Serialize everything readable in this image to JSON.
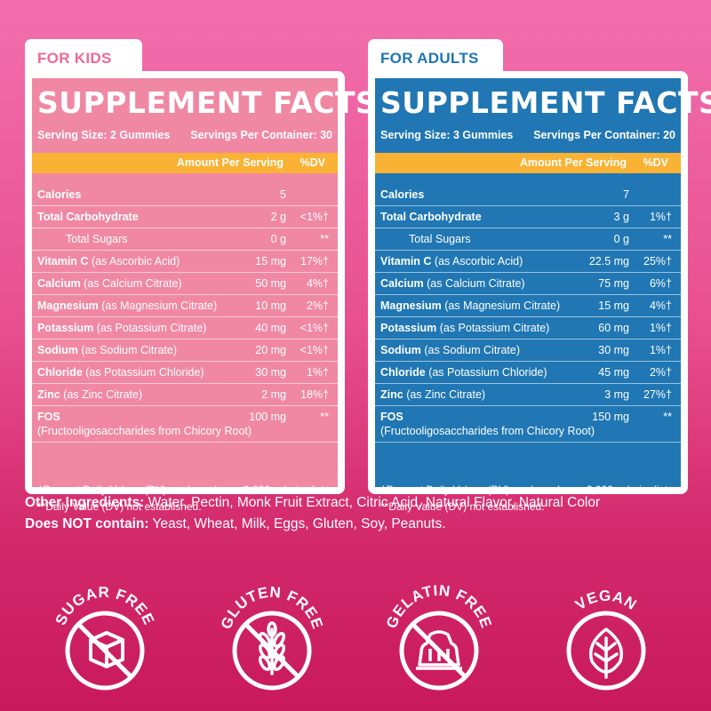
{
  "kids": {
    "tab": "FOR KIDS",
    "title": "SUPPLEMENT FACTS",
    "serving_size": "Serving Size: 2 Gummies",
    "servings_per_container": "Servings Per Container: 30",
    "amount_header": "Amount Per Serving",
    "dv_header": "%DV",
    "rows": [
      {
        "name": "Calories",
        "sub": "",
        "amount": "5",
        "dv": ""
      },
      {
        "name": "Total Carbohydrate",
        "sub": "",
        "amount": "2 g",
        "dv": "<1%†"
      },
      {
        "name": "Total Sugars",
        "sub": "",
        "amount": "0 g",
        "dv": "**"
      },
      {
        "name": "Vitamin C",
        "sub": "(as Ascorbic Acid)",
        "amount": "15 mg",
        "dv": "17%†"
      },
      {
        "name": "Calcium",
        "sub": "(as Calcium Citrate)",
        "amount": "50 mg",
        "dv": "4%†"
      },
      {
        "name": "Magnesium",
        "sub": "(as Magnesium Citrate)",
        "amount": "10 mg",
        "dv": "2%†"
      },
      {
        "name": "Potassium",
        "sub": "(as Potassium Citrate)",
        "amount": "40 mg",
        "dv": "<1%†"
      },
      {
        "name": "Sodium",
        "sub": "(as Sodium Citrate)",
        "amount": "20 mg",
        "dv": "<1%†"
      },
      {
        "name": "Chloride",
        "sub": "(as Potassium Chloride)",
        "amount": "30 mg",
        "dv": "1%†"
      },
      {
        "name": "Zinc",
        "sub": "(as Zinc Citrate)",
        "amount": "2 mg",
        "dv": "18%†"
      },
      {
        "name": "FOS",
        "sub": "(Fructooligosaccharides from Chicory Root)",
        "amount": "100 mg",
        "dv": "**"
      }
    ],
    "footnote_1": "†Percent Daily Values (DV) are based on a 2,000 calorie diet.",
    "footnote_2": "**Daily Value (DV) not established."
  },
  "adults": {
    "tab": "FOR ADULTS",
    "title": "SUPPLEMENT FACTS",
    "serving_size": "Serving Size: 3 Gummies",
    "servings_per_container": "Servings Per Container: 20",
    "amount_header": "Amount Per Serving",
    "dv_header": "%DV",
    "rows": [
      {
        "name": "Calories",
        "sub": "",
        "amount": "7",
        "dv": ""
      },
      {
        "name": "Total Carbohydrate",
        "sub": "",
        "amount": "3 g",
        "dv": "1%†"
      },
      {
        "name": "Total Sugars",
        "sub": "",
        "amount": "0 g",
        "dv": "**"
      },
      {
        "name": "Vitamin C",
        "sub": "(as Ascorbic Acid)",
        "amount": "22.5 mg",
        "dv": "25%†"
      },
      {
        "name": "Calcium",
        "sub": "(as Calcium Citrate)",
        "amount": "75 mg",
        "dv": "6%†"
      },
      {
        "name": "Magnesium",
        "sub": "(as Magnesium Citrate)",
        "amount": "15 mg",
        "dv": "4%†"
      },
      {
        "name": "Potassium",
        "sub": "(as Potassium Citrate)",
        "amount": "60 mg",
        "dv": "1%†"
      },
      {
        "name": "Sodium",
        "sub": "(as Sodium Citrate)",
        "amount": "30 mg",
        "dv": "1%†"
      },
      {
        "name": "Chloride",
        "sub": "(as Potassium Chloride)",
        "amount": "45 mg",
        "dv": "2%†"
      },
      {
        "name": "Zinc",
        "sub": "(as Zinc Citrate)",
        "amount": "3 mg",
        "dv": "27%†"
      },
      {
        "name": "FOS",
        "sub": "(Fructooligosaccharides from Chicory Root)",
        "amount": "150 mg",
        "dv": "**"
      }
    ],
    "footnote_1": "†Percent Daily Values (DV) are based on a 2,000 calorie diet.",
    "footnote_2": "**Daily Value (DV) not established."
  },
  "ingredients": {
    "other_label": "Other Ingredients:",
    "other_text": " Water, Pectin, Monk Fruit Extract, Citric Acid, Natural Flavor, Natural Color",
    "not_label": "Does NOT contain:",
    "not_text": " Yeast, Wheat, Milk, Eggs, Gluten, Soy, Peanuts."
  },
  "badges": [
    {
      "label": "SUGAR FREE",
      "icon": "sugar-cube-icon"
    },
    {
      "label": "GLUTEN FREE",
      "icon": "wheat-icon"
    },
    {
      "label": "GELATIN FREE",
      "icon": "gelatin-mold-icon"
    },
    {
      "label": "VEGAN",
      "icon": "leaf-icon"
    }
  ],
  "colors": {
    "kids_panel": "#f088a4",
    "adults_panel": "#2077b3",
    "header_bar": "#f9b233",
    "kids_tab_text": "#ee6a96",
    "adults_tab_text": "#1f76b2"
  }
}
